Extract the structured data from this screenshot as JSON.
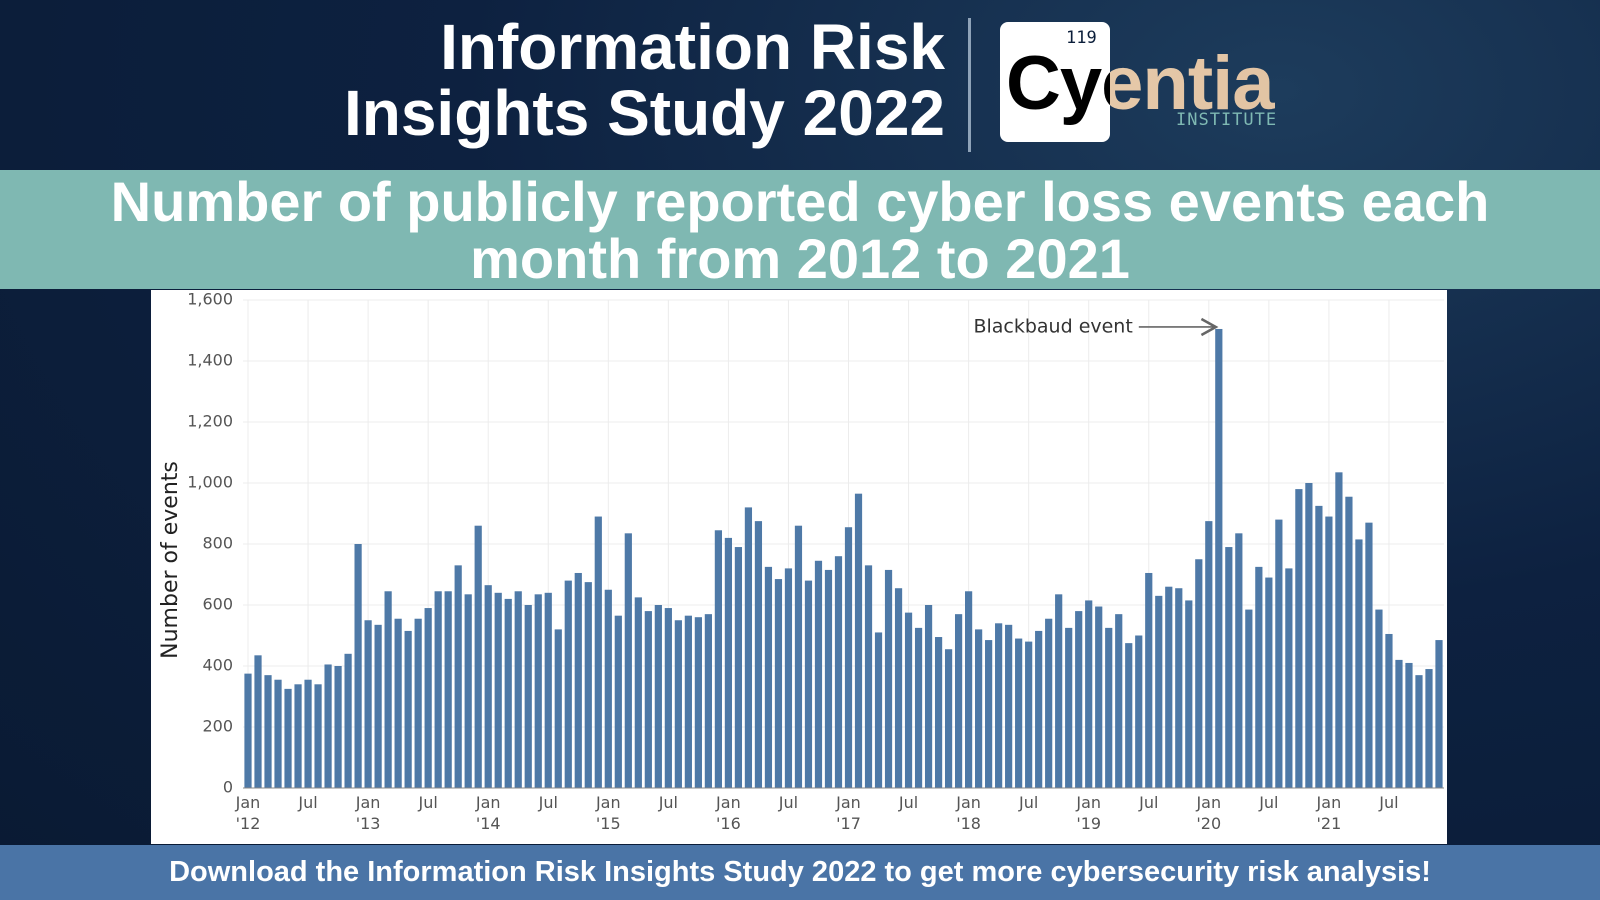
{
  "header": {
    "title": "Information Risk\nInsights Study 2022",
    "logo": {
      "number": "119",
      "name": "Cyentia",
      "subtitle": "INSTITUTE"
    }
  },
  "footer": "Download the Information Risk Insights Study 2022 to get more cybersecurity risk analysis!",
  "chart_data": {
    "type": "bar",
    "title": "Number of publicly reported cyber loss events each month from 2012 to 2021",
    "y_label": "Number of events",
    "annotation": "Blackbaud event",
    "color": "#4e79a7",
    "grid": true,
    "ylim": [
      0,
      1600
    ],
    "yticks": [
      0,
      200,
      400,
      600,
      800,
      {
        "value": 1000,
        "label": "1,000"
      },
      {
        "value": 1200,
        "label": "1,200"
      },
      {
        "value": 1400,
        "label": "1,400"
      },
      {
        "value": 1600,
        "label": "1,600"
      }
    ],
    "categories": [
      "Jan\n'12",
      null,
      null,
      null,
      null,
      null,
      "Jul",
      null,
      null,
      null,
      null,
      null,
      "Jan\n'13",
      null,
      null,
      null,
      null,
      null,
      "Jul",
      null,
      null,
      null,
      null,
      null,
      "Jan\n'14",
      null,
      null,
      null,
      null,
      null,
      "Jul",
      null,
      null,
      null,
      null,
      null,
      "Jan\n'15",
      null,
      null,
      null,
      null,
      null,
      "Jul",
      null,
      null,
      null,
      null,
      null,
      "Jan\n'16",
      null,
      null,
      null,
      null,
      null,
      "Jul",
      null,
      null,
      null,
      null,
      null,
      "Jan\n'17",
      null,
      null,
      null,
      null,
      null,
      "Jul",
      null,
      null,
      null,
      null,
      null,
      "Jan\n'18",
      null,
      null,
      null,
      null,
      null,
      "Jul",
      null,
      null,
      null,
      null,
      null,
      "Jan\n'19",
      null,
      null,
      null,
      null,
      null,
      "Jul",
      null,
      null,
      null,
      null,
      null,
      "Jan\n'20",
      null,
      null,
      null,
      null,
      null,
      "Jul",
      null,
      null,
      null,
      null,
      null,
      "Jan\n'21",
      null,
      null,
      null,
      null,
      null,
      "Jul",
      null,
      null,
      null,
      null,
      null
    ],
    "values": [
      375,
      435,
      370,
      355,
      325,
      340,
      355,
      340,
      405,
      400,
      440,
      800,
      550,
      535,
      645,
      555,
      515,
      555,
      590,
      645,
      645,
      730,
      635,
      860,
      665,
      640,
      620,
      645,
      600,
      635,
      640,
      520,
      680,
      705,
      675,
      890,
      650,
      565,
      835,
      625,
      580,
      600,
      590,
      550,
      565,
      560,
      570,
      845,
      820,
      790,
      920,
      875,
      725,
      685,
      720,
      860,
      680,
      745,
      715,
      760,
      855,
      965,
      730,
      510,
      715,
      655,
      575,
      525,
      600,
      495,
      455,
      570,
      645,
      520,
      485,
      540,
      535,
      490,
      480,
      515,
      555,
      635,
      525,
      580,
      615,
      595,
      525,
      570,
      475,
      500,
      705,
      630,
      660,
      655,
      615,
      750,
      875,
      1505,
      790,
      835,
      585,
      725,
      690,
      880,
      720,
      980,
      1000,
      925,
      890,
      1035,
      955,
      815,
      870,
      585,
      505,
      420,
      410,
      370,
      390,
      485
    ]
  }
}
